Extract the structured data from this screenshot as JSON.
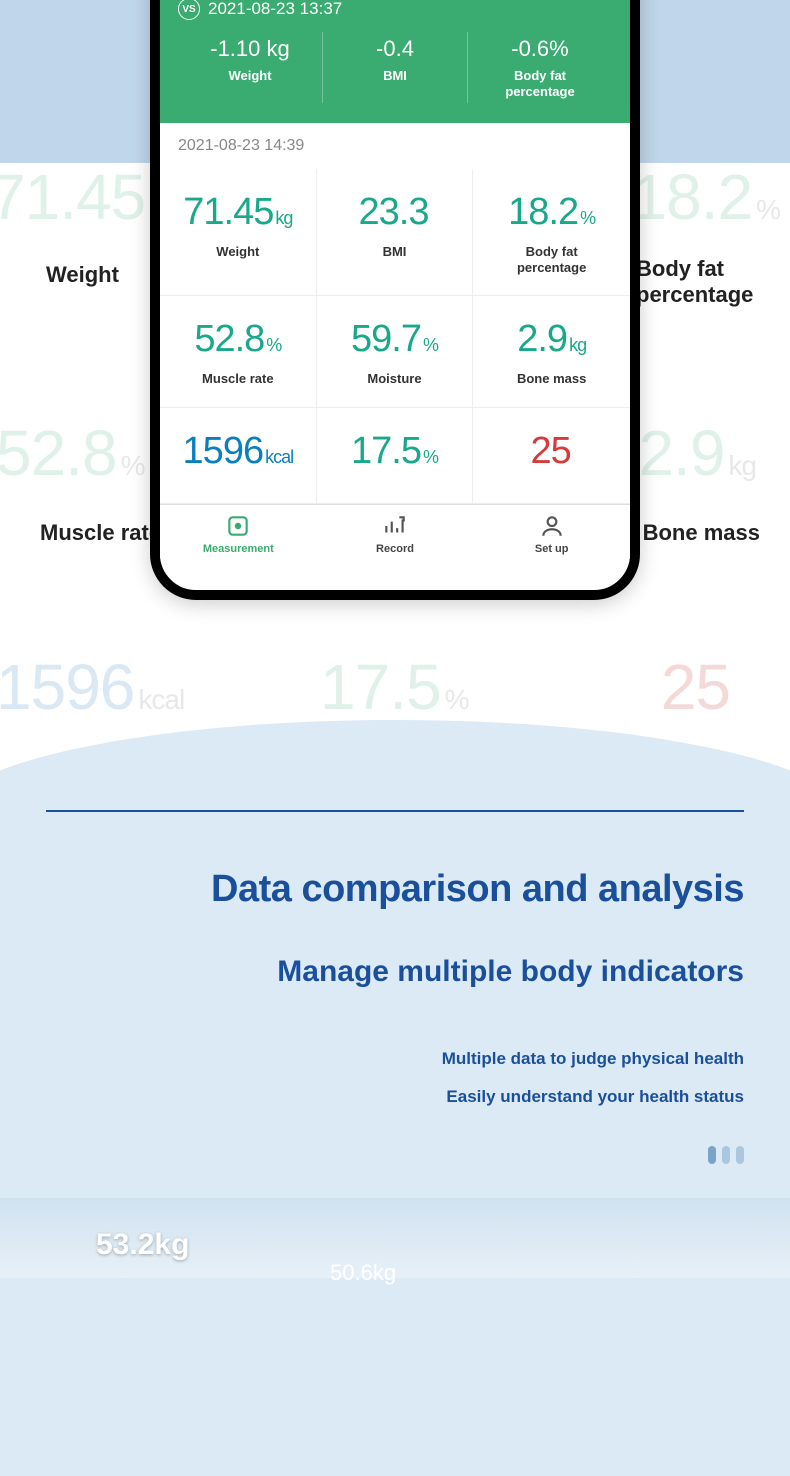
{
  "colors": {
    "green": "#3aab71",
    "blue_band": "#c0d6ea",
    "promo_bg": "#dceaf5",
    "promo_text": "#1a4f9c",
    "teal_metric": "#1aa88a",
    "red_metric": "#d43c3c",
    "faded_metric": "#dff1e8",
    "faded_unit": "#d8d8d8"
  },
  "bg_metrics": {
    "weight": {
      "value": "71.45",
      "unit": "kg",
      "label": "Weight"
    },
    "bodyfat": {
      "value": "18.2",
      "unit": "%",
      "label": "Body fat percentage"
    },
    "muscle": {
      "value": "52.8",
      "unit": "%",
      "label": "Muscle rate"
    },
    "bone": {
      "value": "2.9",
      "unit": "kg",
      "label": "Bone mass"
    },
    "bmr": {
      "value": "1596",
      "unit": "kcal"
    },
    "bmi_lower": {
      "value": "17.5",
      "unit": "%"
    },
    "age": {
      "value": "25"
    }
  },
  "phone": {
    "vs_label": "VS",
    "prev_timestamp": "2021-08-23 13:37",
    "deltas": [
      {
        "value": "-1.10 kg",
        "label": "Weight"
      },
      {
        "value": "-0.4",
        "label": "BMI"
      },
      {
        "value": "-0.6%",
        "label": "Body fat\npercentage"
      }
    ],
    "curr_timestamp": "2021-08-23 14:39",
    "metrics": [
      {
        "n": "71.45",
        "u": "kg",
        "label": "Weight",
        "color": "#1aa88a"
      },
      {
        "n": "23.3",
        "u": "",
        "label": "BMI",
        "color": "#1aa88a"
      },
      {
        "n": "18.2",
        "u": "%",
        "label": "Body fat\npercentage",
        "color": "#1aa88a"
      },
      {
        "n": "52.8",
        "u": "%",
        "label": "Muscle rate",
        "color": "#1aa88a"
      },
      {
        "n": "59.7",
        "u": "%",
        "label": "Moisture",
        "color": "#1aa88a"
      },
      {
        "n": "2.9",
        "u": "kg",
        "label": "Bone mass",
        "color": "#1aa88a"
      },
      {
        "n": "1596",
        "u": "kcal",
        "label": "",
        "color": "#0a7fbf"
      },
      {
        "n": "17.5",
        "u": "%",
        "label": "",
        "color": "#1aa88a"
      },
      {
        "n": "25",
        "u": "",
        "label": "",
        "color": "#d43c3c"
      }
    ],
    "nav": [
      {
        "label": "Measurement",
        "active": true
      },
      {
        "label": "Record",
        "active": false
      },
      {
        "label": "Set up",
        "active": false
      }
    ]
  },
  "promo": {
    "title": "Data comparison and analysis",
    "subtitle": "Manage multiple body indicators",
    "line1": "Multiple data to judge physical health",
    "line2": "Easily understand your health status"
  },
  "bottom": {
    "weight": "53.2kg",
    "center": "50.6kg"
  }
}
